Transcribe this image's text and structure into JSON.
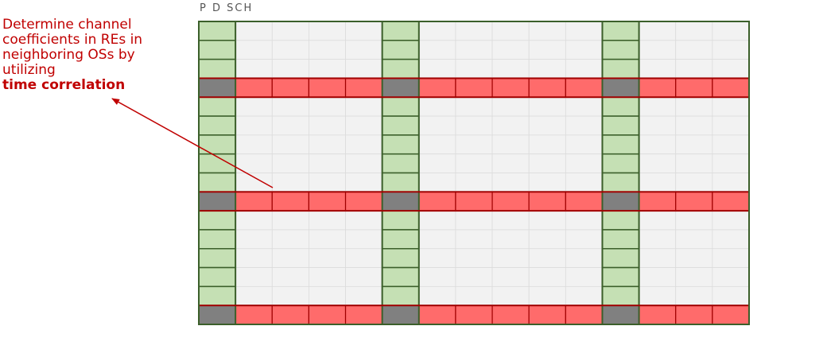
{
  "annotation": {
    "lines": [
      "Determine channel",
      "coefficients in REs in",
      "neighboring OSs by",
      "utilizing"
    ],
    "highlight": "time correlation"
  },
  "grid": {
    "label": "P D SCH",
    "rows": 16,
    "cols": 15,
    "pilot_rows": [
      3,
      9,
      15
    ],
    "pilot_cols": [
      0,
      5,
      11
    ]
  },
  "colors": {
    "annotation": "#c00000",
    "background_cell": "#f2f2f2",
    "grid_line": "#dcdcdc",
    "grid_border": "#3b5f2a",
    "pilot_column_fill": "#c5e0b4",
    "pilot_row_fill": "#ff6b6b",
    "pilot_row_stroke": "#a00000",
    "intersection_fill": "#808080",
    "arrow": "#c00000"
  }
}
